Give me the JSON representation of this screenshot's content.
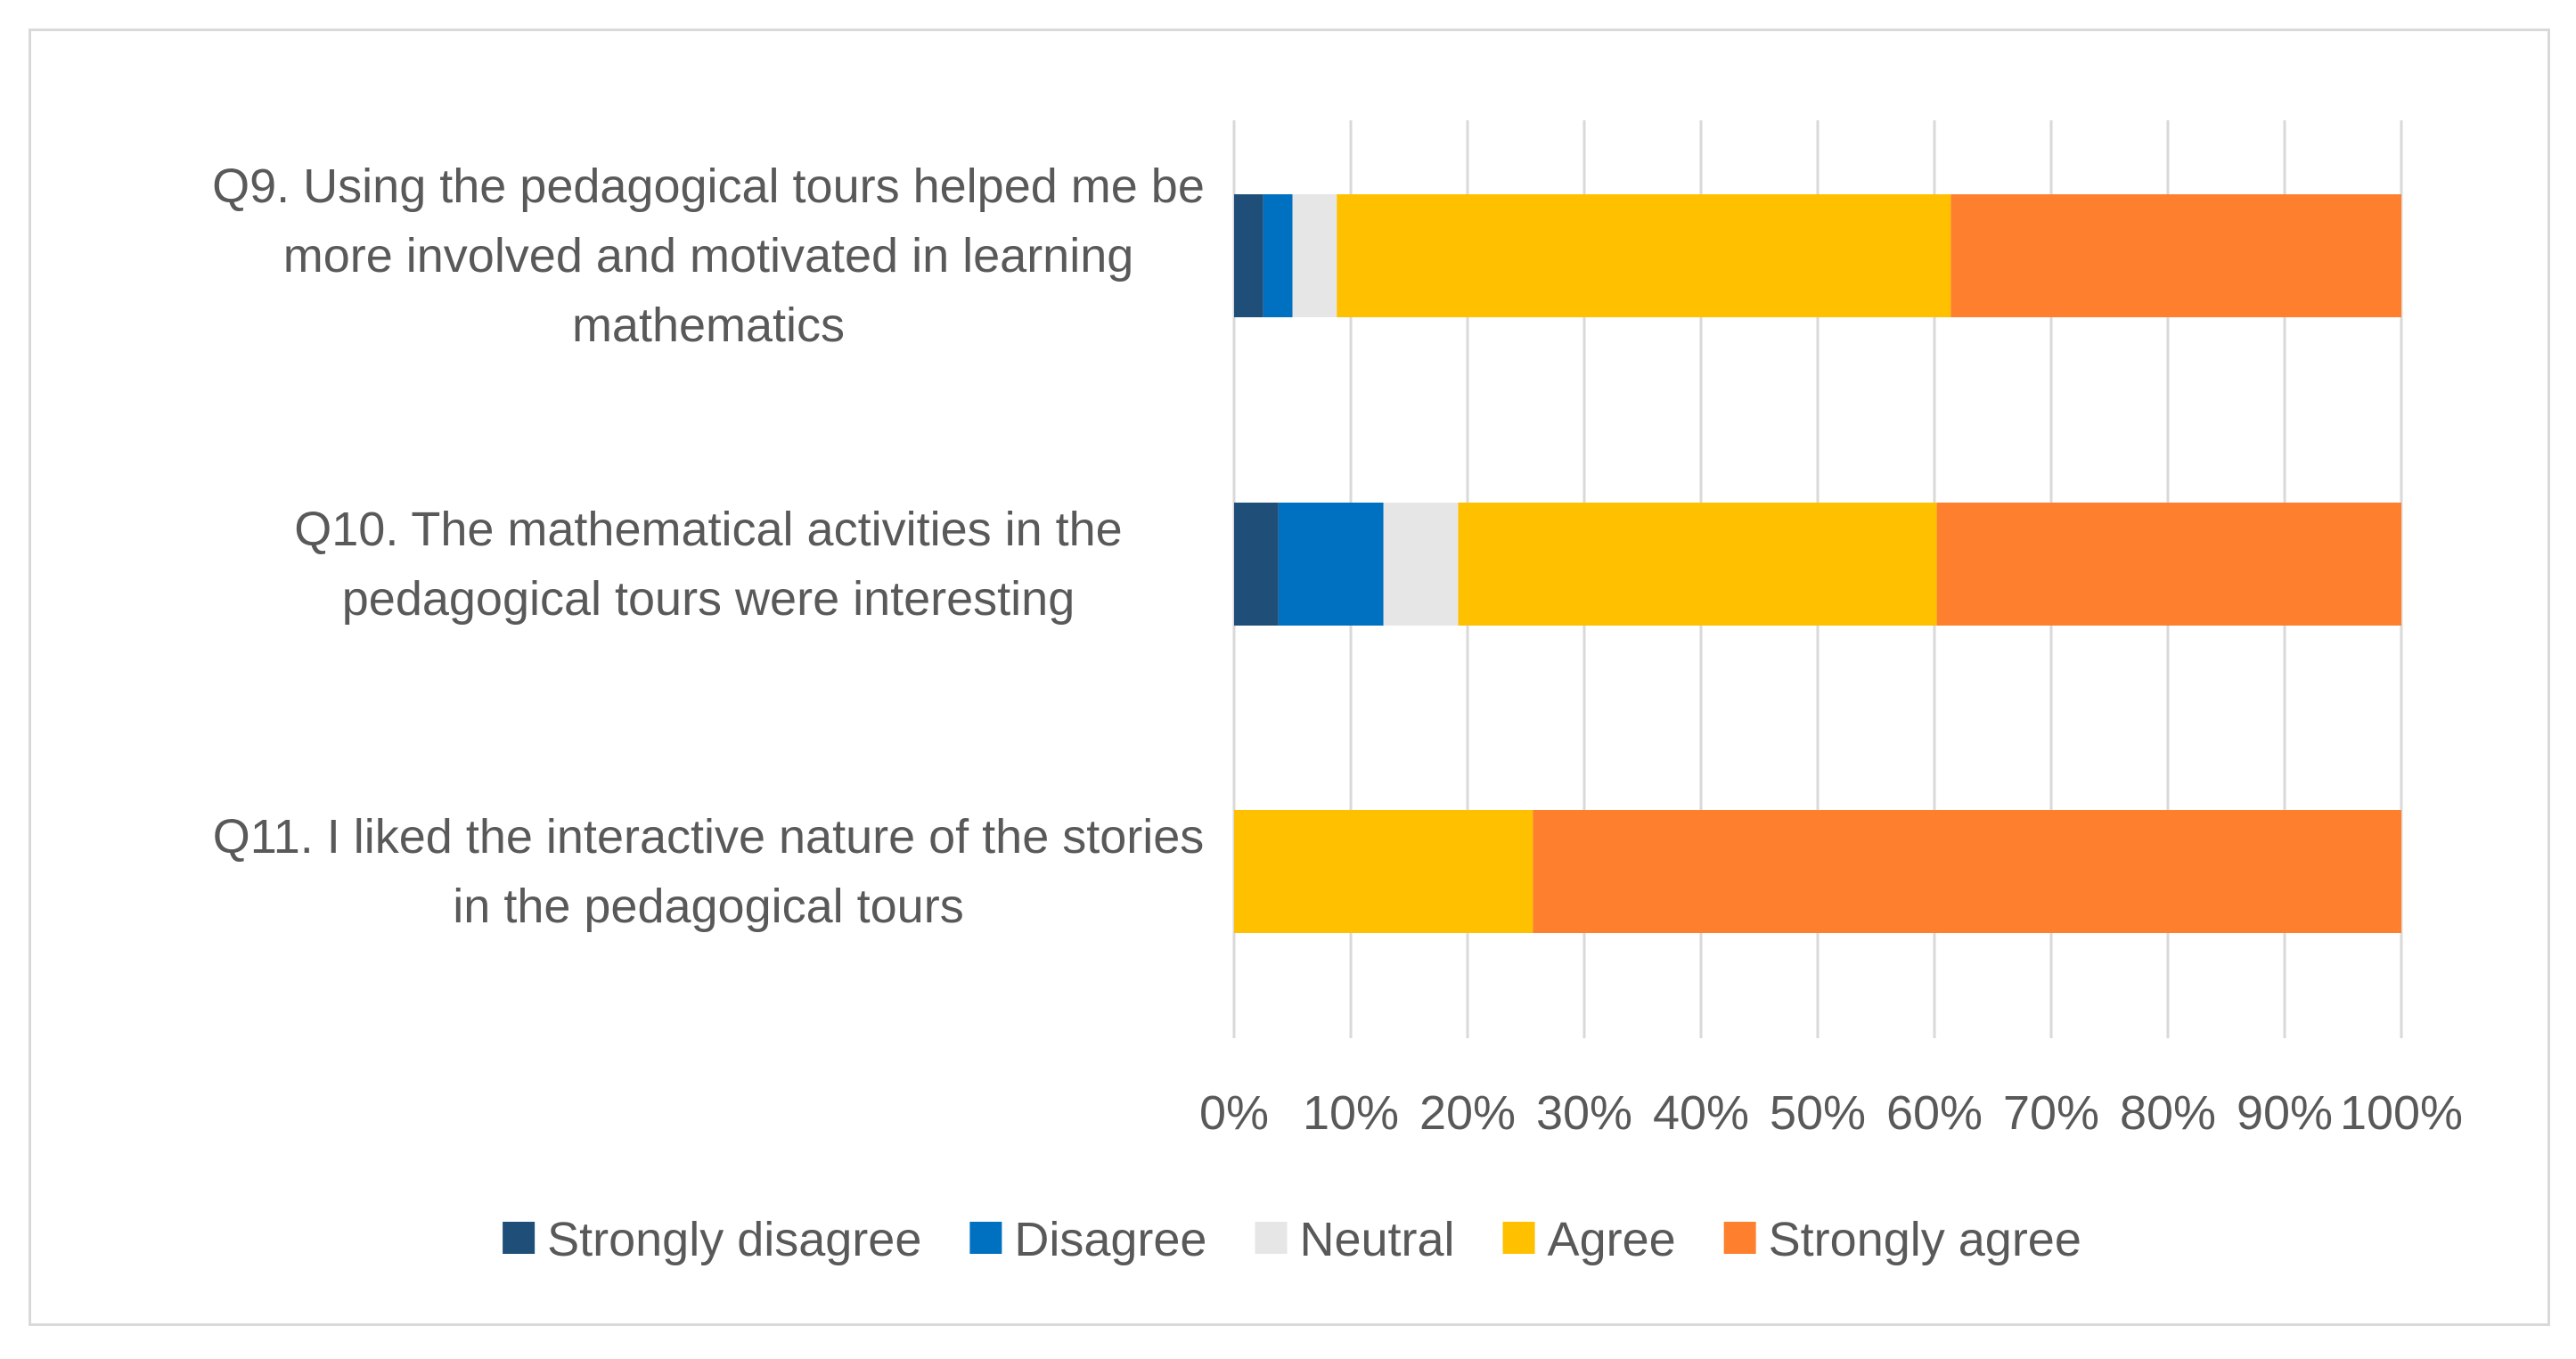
{
  "chart_data": {
    "type": "bar",
    "orientation": "horizontal",
    "stacked": true,
    "percent": true,
    "categories": [
      [
        "Q9.  Using the pedagogical tours helped me be",
        "more involved and motivated in learning",
        "mathematics"
      ],
      [
        "Q10. The mathematical activities in the",
        "pedagogical tours were interesting"
      ],
      [
        "Q11. I liked the interactive nature of the stories",
        "in the pedagogical tours"
      ]
    ],
    "series": [
      {
        "name": "Strongly disagree",
        "color": "#1f4e79",
        "values": [
          2.5,
          3.8,
          0
        ]
      },
      {
        "name": "Disagree",
        "color": "#0070c0",
        "values": [
          2.5,
          9.0,
          0
        ]
      },
      {
        "name": "Neutral",
        "color": "#e7e6e6",
        "values": [
          3.8,
          6.4,
          0
        ]
      },
      {
        "name": "Agree",
        "color": "#ffc000",
        "values": [
          52.6,
          41.0,
          25.6
        ]
      },
      {
        "name": "Strongly agree",
        "color": "#fe7f2d",
        "values": [
          38.6,
          39.8,
          74.4
        ]
      }
    ],
    "x_ticks": [
      "0%",
      "10%",
      "20%",
      "30%",
      "40%",
      "50%",
      "60%",
      "70%",
      "80%",
      "90%",
      "100%"
    ],
    "xlim": [
      0,
      100
    ],
    "grid": true,
    "legend_position": "bottom"
  }
}
